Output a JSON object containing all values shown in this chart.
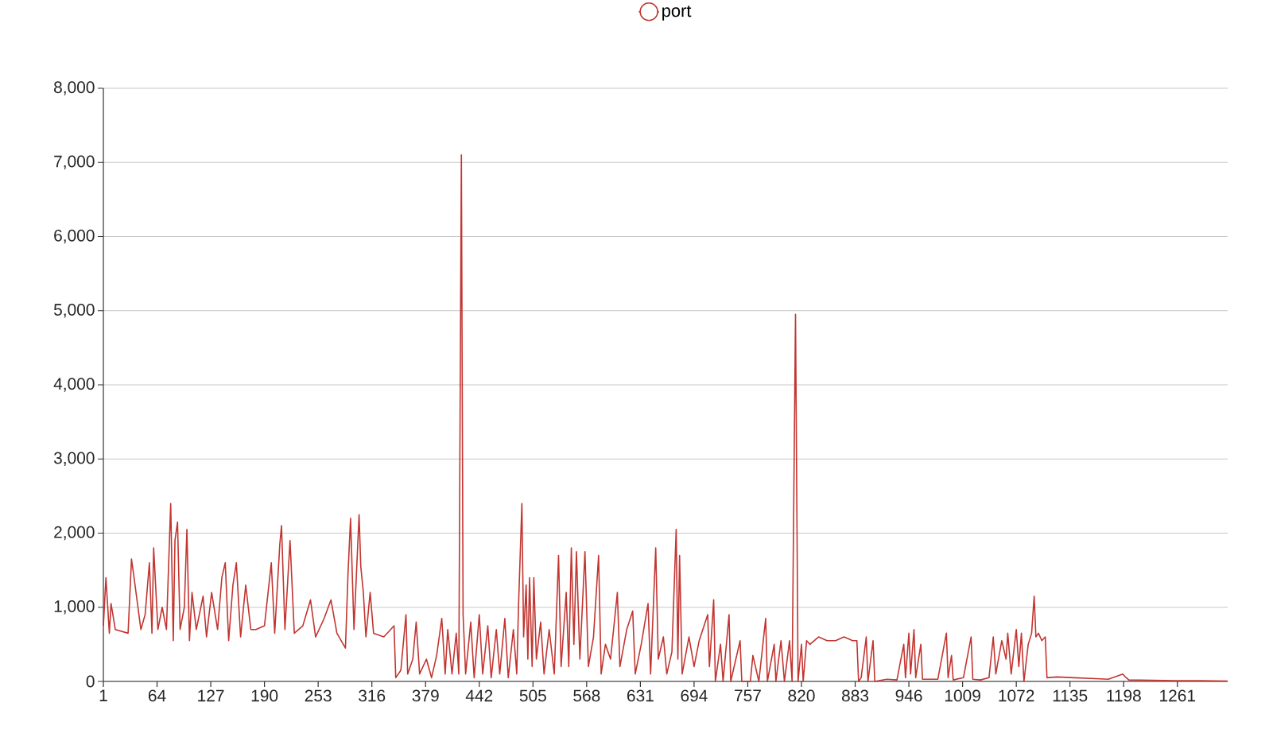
{
  "chart_data": {
    "type": "line",
    "legend": "top",
    "grid": "y",
    "marker": "none",
    "xlim": [
      1,
      1320
    ],
    "xticks": [
      1,
      64,
      127,
      190,
      253,
      316,
      379,
      442,
      505,
      568,
      631,
      694,
      757,
      820,
      883,
      946,
      1009,
      1072,
      1135,
      1198,
      1261
    ],
    "ylim": [
      0,
      8000
    ],
    "yticks": [
      {
        "value": 0,
        "label": "0"
      },
      {
        "value": 1000,
        "label": "1,000"
      },
      {
        "value": 2000,
        "label": "2,000"
      },
      {
        "value": 3000,
        "label": "3,000"
      },
      {
        "value": 4000,
        "label": "4,000"
      },
      {
        "value": 5000,
        "label": "5,000"
      },
      {
        "value": 6000,
        "label": "6,000"
      },
      {
        "value": 7000,
        "label": "7,000"
      },
      {
        "value": 8000,
        "label": "8,000"
      }
    ],
    "series": [
      {
        "name": "port",
        "color": "#c23531",
        "x": [
          1,
          4,
          8,
          10,
          15,
          30,
          34,
          37,
          45,
          50,
          55,
          58,
          60,
          65,
          70,
          75,
          80,
          83,
          85,
          88,
          91,
          96,
          99,
          102,
          105,
          110,
          118,
          122,
          128,
          135,
          140,
          144,
          148,
          153,
          157,
          162,
          168,
          174,
          180,
          190,
          198,
          202,
          208,
          210,
          214,
          220,
          225,
          235,
          244,
          250,
          260,
          268,
          275,
          285,
          288,
          291,
          295,
          301,
          303,
          306,
          309,
          314,
          318,
          330,
          338,
          342,
          344,
          350,
          356,
          358,
          364,
          368,
          372,
          380,
          386,
          392,
          398,
          402,
          405,
          410,
          415,
          418,
          421,
          423,
          426,
          432,
          436,
          442,
          446,
          452,
          456,
          462,
          466,
          472,
          476,
          482,
          486,
          488,
          492,
          494,
          497,
          499,
          501,
          504,
          506,
          509,
          514,
          518,
          524,
          530,
          535,
          538,
          544,
          547,
          550,
          553,
          556,
          560,
          566,
          570,
          576,
          582,
          585,
          590,
          596,
          604,
          607,
          615,
          622,
          625,
          632,
          640,
          643,
          649,
          652,
          658,
          662,
          668,
          673,
          675,
          677,
          680,
          688,
          694,
          700,
          710,
          712,
          717,
          719,
          725,
          728,
          735,
          737,
          748,
          750,
          760,
          763,
          770,
          778,
          780,
          788,
          790,
          796,
          800,
          806,
          809,
          813,
          816,
          820,
          822,
          826,
          830,
          840,
          850,
          860,
          870,
          880,
          885,
          887,
          890,
          896,
          898,
          904,
          906,
          920,
          932,
          940,
          942,
          946,
          948,
          952,
          954,
          960,
          962,
          980,
          990,
          992,
          996,
          998,
          1010,
          1019,
          1021,
          1030,
          1040,
          1045,
          1048,
          1055,
          1060,
          1062,
          1066,
          1072,
          1075,
          1078,
          1081,
          1086,
          1090,
          1093,
          1095,
          1098,
          1102,
          1106,
          1108,
          1120,
          1140,
          1160,
          1180,
          1197,
          1200,
          1204,
          1230,
          1260,
          1290,
          1320
        ],
        "values": [
          750,
          1400,
          650,
          1050,
          700,
          650,
          1650,
          1400,
          700,
          900,
          1600,
          650,
          1800,
          700,
          1000,
          700,
          2400,
          550,
          1900,
          2150,
          700,
          1000,
          2050,
          550,
          1200,
          700,
          1150,
          600,
          1200,
          700,
          1400,
          1600,
          550,
          1300,
          1600,
          600,
          1300,
          700,
          700,
          750,
          1600,
          650,
          1850,
          2100,
          700,
          1900,
          650,
          750,
          1100,
          600,
          850,
          1100,
          650,
          450,
          1450,
          2200,
          700,
          2250,
          1550,
          1200,
          600,
          1200,
          650,
          600,
          700,
          750,
          50,
          150,
          900,
          100,
          300,
          800,
          100,
          300,
          50,
          350,
          850,
          100,
          700,
          100,
          650,
          100,
          7100,
          900,
          100,
          800,
          50,
          900,
          100,
          750,
          50,
          700,
          100,
          850,
          50,
          700,
          100,
          1000,
          2400,
          600,
          1300,
          300,
          1400,
          200,
          1400,
          300,
          800,
          100,
          700,
          100,
          1700,
          200,
          1200,
          200,
          1800,
          500,
          1750,
          300,
          1750,
          200,
          600,
          1700,
          100,
          500,
          300,
          1200,
          200,
          700,
          950,
          100,
          500,
          1050,
          100,
          1800,
          300,
          600,
          100,
          400,
          2050,
          300,
          1700,
          100,
          600,
          200,
          550,
          900,
          200,
          1100,
          0,
          500,
          0,
          900,
          0,
          550,
          0,
          0,
          350,
          0,
          850,
          0,
          500,
          0,
          550,
          0,
          550,
          0,
          4950,
          0,
          500,
          0,
          550,
          500,
          600,
          550,
          550,
          600,
          550,
          550,
          0,
          50,
          600,
          0,
          550,
          0,
          30,
          20,
          500,
          50,
          650,
          100,
          700,
          50,
          500,
          30,
          30,
          650,
          50,
          350,
          20,
          50,
          600,
          30,
          20,
          50,
          600,
          100,
          550,
          300,
          650,
          100,
          700,
          200,
          650,
          0,
          500,
          650,
          1150,
          600,
          650,
          550,
          600,
          50,
          60,
          50,
          40,
          30,
          100,
          60,
          20,
          15,
          10,
          10,
          5
        ]
      }
    ]
  }
}
